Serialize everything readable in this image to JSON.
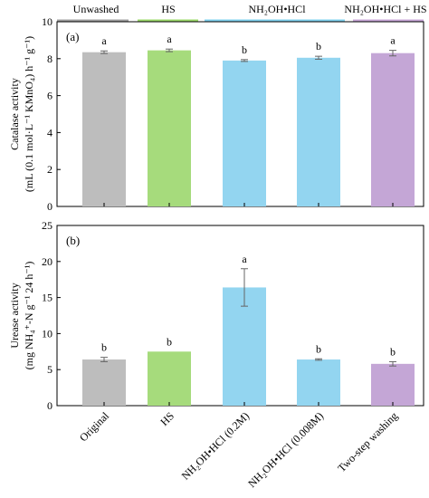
{
  "group_header": {
    "labels": [
      {
        "text": "Unwashed",
        "color": "#a0a0a0"
      },
      {
        "text": "HS",
        "color": "#9bd86a"
      },
      {
        "text": "NH₂OH•HCl",
        "color": "#7fd0ee"
      },
      {
        "text": "NH₂OH•HCl + HS",
        "color": "#c9a7d8"
      }
    ]
  },
  "chart_data": [
    {
      "type": "bar",
      "panel_label": "(a)",
      "ylabel_line1": "Catalase activity",
      "ylabel_line2": "(mL (0.1 mol·L⁻¹ KMnO₄) h⁻¹ g⁻¹)",
      "ylim": [
        0,
        10
      ],
      "yticks": [
        "0",
        "2",
        "4",
        "6",
        "8",
        "10"
      ],
      "categories": [
        "Original",
        "HS",
        "NH₂OH•HCl (0.2M)",
        "NH₂OH•HCl (0.008M)",
        "Two-step washing"
      ],
      "values": [
        8.35,
        8.45,
        7.9,
        8.05,
        8.3
      ],
      "errors": [
        0.07,
        0.07,
        0.05,
        0.08,
        0.15
      ],
      "letters": [
        "a",
        "a",
        "b",
        "b",
        "a"
      ],
      "colors": [
        "#bdbdbd",
        "#a6db7c",
        "#93d5f0",
        "#93d5f0",
        "#c4a6d6"
      ],
      "grid": false
    },
    {
      "type": "bar",
      "panel_label": "(b)",
      "ylabel_line1": "Urease activity",
      "ylabel_line2": "(mg NH₄⁺-N g⁻¹ 24 h⁻¹)",
      "ylim": [
        0,
        25
      ],
      "yticks": [
        "0",
        "5",
        "10",
        "15",
        "20",
        "25"
      ],
      "categories": [
        "Original",
        "HS",
        "NH₂OH•HCl (0.2M)",
        "NH₂OH•HCl (0.008M)",
        "Two-step washing"
      ],
      "values": [
        6.4,
        7.5,
        16.4,
        6.4,
        5.8
      ],
      "errors": [
        0.3,
        0.0,
        2.6,
        0.1,
        0.3
      ],
      "letters": [
        "b",
        "b",
        "a",
        "b",
        "b"
      ],
      "colors": [
        "#bdbdbd",
        "#a6db7c",
        "#93d5f0",
        "#93d5f0",
        "#c4a6d6"
      ],
      "grid": false
    }
  ]
}
